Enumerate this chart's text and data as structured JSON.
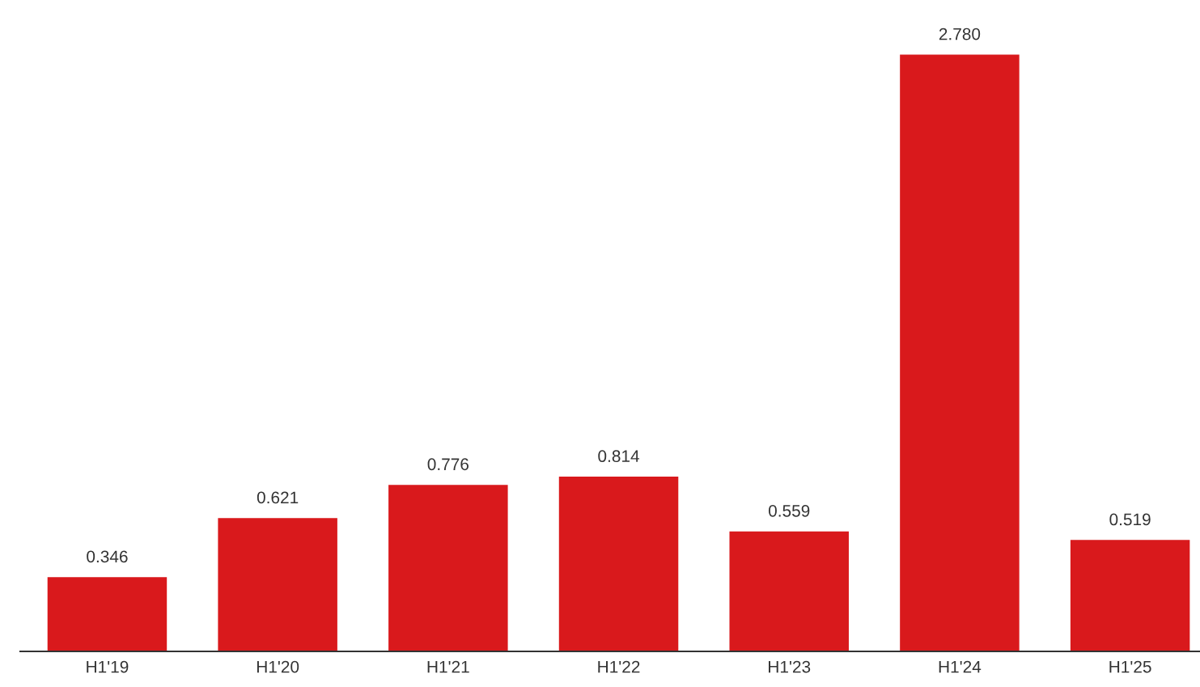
{
  "chart_data": {
    "type": "bar",
    "categories": [
      "H1'19",
      "H1'20",
      "H1'21",
      "H1'22",
      "H1'23",
      "H1'24",
      "H1'25"
    ],
    "values": [
      0.346,
      0.621,
      0.776,
      0.814,
      0.559,
      2.78,
      0.519
    ],
    "value_labels": [
      "0.346",
      "0.621",
      "0.776",
      "0.814",
      "0.559",
      "2.780",
      "0.519"
    ],
    "color": "#d9191c"
  }
}
